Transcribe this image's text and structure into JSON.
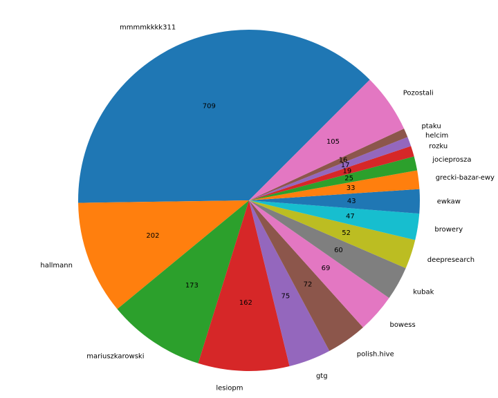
{
  "chart_data": {
    "type": "pie",
    "start_angle_deg": 45,
    "direction": "counterclockwise",
    "slices": [
      {
        "label": "mmmmkkkk311",
        "value": 709,
        "color": "#1f77b4"
      },
      {
        "label": "hallmann",
        "value": 202,
        "color": "#ff7f0e"
      },
      {
        "label": "mariuszkarowski",
        "value": 173,
        "color": "#2ca02c"
      },
      {
        "label": "lesiopm",
        "value": 162,
        "color": "#d62728"
      },
      {
        "label": "gtg",
        "value": 75,
        "color": "#9467bd"
      },
      {
        "label": "polish.hive",
        "value": 72,
        "color": "#8c564b"
      },
      {
        "label": "bowess",
        "value": 69,
        "color": "#e377c2"
      },
      {
        "label": "kubak",
        "value": 60,
        "color": "#7f7f7f"
      },
      {
        "label": "deepresearch",
        "value": 52,
        "color": "#bcbd22"
      },
      {
        "label": "browery",
        "value": 47,
        "color": "#17becf"
      },
      {
        "label": "ewkaw",
        "value": 43,
        "color": "#1f77b4"
      },
      {
        "label": "grecki-bazar-ewy",
        "value": 33,
        "color": "#ff7f0e"
      },
      {
        "label": "jocieprosza",
        "value": 25,
        "color": "#2ca02c"
      },
      {
        "label": "rozku",
        "value": 19,
        "color": "#d62728"
      },
      {
        "label": "helcim",
        "value": 17,
        "color": "#9467bd"
      },
      {
        "label": "ptaku",
        "value": 16,
        "color": "#8c564b"
      },
      {
        "label": "Pozostali",
        "value": 105,
        "color": "#e377c2"
      }
    ]
  }
}
